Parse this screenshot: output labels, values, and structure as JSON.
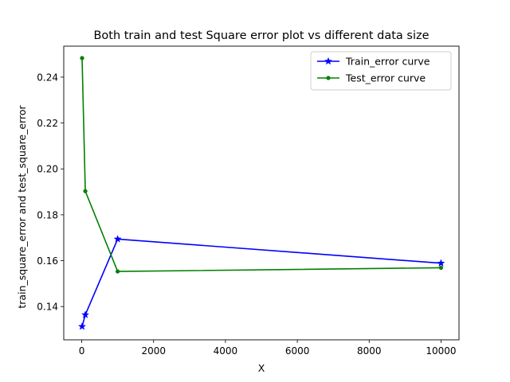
{
  "chart_data": {
    "type": "line",
    "title": "Both train and test Square error plot vs different data size",
    "xlabel": "X",
    "ylabel": "train_square_error and test_square_error",
    "xlim": [
      -500,
      10500
    ],
    "ylim": [
      0.1255,
      0.2535
    ],
    "xticks": [
      0,
      2000,
      4000,
      6000,
      8000,
      10000
    ],
    "xtick_labels": [
      "0",
      "2000",
      "4000",
      "6000",
      "8000",
      "10000"
    ],
    "yticks": [
      0.14,
      0.16,
      0.18,
      0.2,
      0.22,
      0.24
    ],
    "ytick_labels": [
      "0.14",
      "0.16",
      "0.18",
      "0.20",
      "0.22",
      "0.24"
    ],
    "grid": false,
    "legend_position": "upper right",
    "series": [
      {
        "name": "Train_error curve",
        "color": "#0000ff",
        "marker": "star",
        "x": [
          10,
          100,
          1000,
          10000
        ],
        "y": [
          0.1313,
          0.1364,
          0.1694,
          0.1589
        ]
      },
      {
        "name": "Test_error curve",
        "color": "#008000",
        "marker": "circle",
        "x": [
          10,
          100,
          1000,
          10000
        ],
        "y": [
          0.2483,
          0.1903,
          0.1553,
          0.1569
        ]
      }
    ]
  }
}
